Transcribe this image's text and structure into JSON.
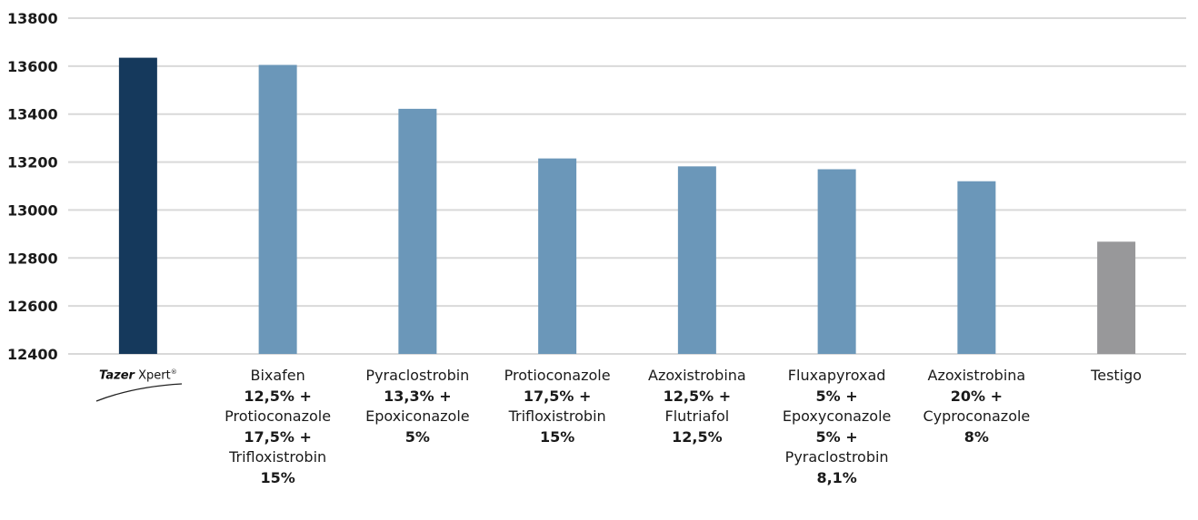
{
  "colors": {
    "highlight": "#15395c",
    "bar": "#6b97b9",
    "control": "#98989a",
    "grid": "#d9d9d9"
  },
  "chart_data": {
    "type": "bar",
    "title": "",
    "xlabel": "",
    "ylabel": "",
    "ylim": [
      12400,
      13800
    ],
    "yticks": [
      12400,
      12600,
      12800,
      13000,
      13200,
      13400,
      13600,
      13800
    ],
    "grid": true,
    "categories": [
      {
        "logo": {
          "brand": "Tazer",
          "model": "Xpert",
          "mark": "®"
        }
      },
      {
        "lines": [
          "Bixafen",
          "12,5% +",
          "Protioconazole",
          "17,5% +",
          "Trifloxistrobin",
          "15%"
        ]
      },
      {
        "lines": [
          "Pyraclostrobin",
          "13,3% +",
          "Epoxiconazole",
          "5%"
        ]
      },
      {
        "lines": [
          "Protioconazole",
          "17,5% +",
          "Trifloxistrobin",
          "15%"
        ]
      },
      {
        "lines": [
          "Azoxistrobina",
          "12,5% +",
          "Flutriafol",
          "12,5%"
        ]
      },
      {
        "lines": [
          "Fluxapyroxad",
          "5% +",
          "Epoxyconazole",
          "5% +",
          "Pyraclostrobin",
          "8,1%"
        ]
      },
      {
        "lines": [
          "Azoxistrobina",
          "20% +",
          "Cyproconazole",
          "8%"
        ]
      },
      {
        "lines": [
          "Testigo"
        ]
      }
    ],
    "values": [
      13635,
      13605,
      13422,
      13215,
      13182,
      13170,
      13120,
      12868
    ],
    "bar_colors": [
      "highlight",
      "bar",
      "bar",
      "bar",
      "bar",
      "bar",
      "bar",
      "control"
    ]
  }
}
